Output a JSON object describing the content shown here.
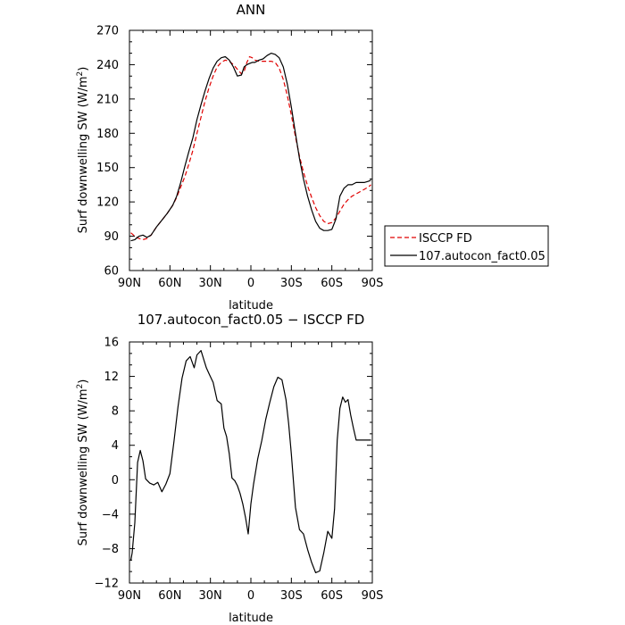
{
  "chart_data": [
    {
      "type": "line",
      "title": "ANN",
      "xlabel": "latitude",
      "ylabel": "Surf downwelling SW (W/m²)",
      "ylabel_main": "Surf downwelling SW (W/m",
      "ylabel_sup": "2",
      "ylabel_end": ")",
      "xlim": [
        90,
        -90
      ],
      "ylim": [
        60,
        270
      ],
      "x_ticks": [
        90,
        60,
        30,
        0,
        -30,
        -60,
        -90
      ],
      "x_tick_labels": [
        "90N",
        "60N",
        "30N",
        "0",
        "30S",
        "60S",
        "90S"
      ],
      "y_ticks": [
        60,
        90,
        120,
        150,
        180,
        210,
        240,
        270
      ],
      "y_tick_labels": [
        "60",
        "90",
        "120",
        "150",
        "180",
        "210",
        "240",
        "270"
      ],
      "legend": "right",
      "series": [
        {
          "name": "ISCCP FD",
          "color": "#e00000",
          "dash": "dashed",
          "x": [
            89,
            86,
            83,
            80,
            77,
            74,
            70,
            66,
            62,
            58,
            55,
            52,
            49,
            46,
            43,
            40,
            37,
            34,
            31,
            28,
            25,
            22,
            19,
            16,
            13,
            10,
            7,
            5,
            3,
            1,
            -1,
            -3,
            -6,
            -9,
            -12,
            -15,
            -18,
            -21,
            -24,
            -27,
            -30,
            -33,
            -36,
            -39,
            -42,
            -45,
            -48,
            -51,
            -54,
            -57,
            -60,
            -63,
            -66,
            -69,
            -72,
            -75,
            -78,
            -81,
            -84,
            -87,
            -89
          ],
          "y": [
            93,
            90,
            88,
            87,
            88,
            91,
            98,
            104,
            110,
            117,
            124,
            133,
            142,
            153,
            165,
            180,
            194,
            208,
            220,
            230,
            238,
            242,
            244,
            243,
            240,
            236,
            232,
            234,
            242,
            247,
            246,
            244,
            243,
            243,
            243,
            243,
            242,
            237,
            227,
            213,
            196,
            177,
            160,
            146,
            134,
            124,
            115,
            108,
            103,
            101,
            102,
            106,
            112,
            118,
            122,
            125,
            127,
            129,
            131,
            133,
            135
          ]
        },
        {
          "name": "107.autocon_fact0.05",
          "color": "#000000",
          "dash": "solid",
          "x": [
            89,
            86,
            83,
            80,
            77,
            74,
            70,
            66,
            62,
            58,
            55,
            52,
            49,
            46,
            43,
            40,
            37,
            34,
            31,
            28,
            25,
            22,
            19,
            16,
            13,
            10,
            7,
            5,
            3,
            1,
            -1,
            -3,
            -6,
            -9,
            -12,
            -15,
            -18,
            -21,
            -24,
            -27,
            -30,
            -33,
            -36,
            -39,
            -42,
            -45,
            -48,
            -51,
            -54,
            -57,
            -60,
            -63,
            -66,
            -69,
            -72,
            -75,
            -78,
            -81,
            -84,
            -87,
            -89
          ],
          "y": [
            86,
            87,
            90,
            91,
            89,
            91,
            98,
            104,
            110,
            117,
            125,
            137,
            151,
            164,
            176,
            192,
            205,
            217,
            228,
            237,
            243,
            246,
            247,
            244,
            238,
            230,
            231,
            238,
            240,
            241,
            242,
            242,
            244,
            245,
            248,
            250,
            249,
            246,
            238,
            223,
            203,
            180,
            158,
            140,
            125,
            113,
            103,
            97,
            95,
            95,
            96,
            105,
            125,
            132,
            135,
            135,
            137,
            137,
            137,
            138,
            139
          ]
        }
      ]
    },
    {
      "type": "line",
      "title": "107.autocon_fact0.05 − ISCCP FD",
      "xlabel": "latitude",
      "ylabel": "Surf downwelling SW (W/m²)",
      "ylabel_main": "Surf downwelling SW (W/m",
      "ylabel_sup": "2",
      "ylabel_end": ")",
      "xlim": [
        90,
        -90
      ],
      "ylim": [
        -12,
        16
      ],
      "x_ticks": [
        90,
        60,
        30,
        0,
        -30,
        -60,
        -90
      ],
      "x_tick_labels": [
        "90N",
        "60N",
        "30N",
        "0",
        "30S",
        "60S",
        "90S"
      ],
      "y_ticks": [
        -12,
        -8,
        -4,
        0,
        4,
        8,
        12,
        16
      ],
      "y_tick_labels": [
        "−12",
        "−8",
        "−4",
        "0",
        "4",
        "8",
        "12",
        "16"
      ],
      "series": [
        {
          "color": "#000000",
          "dash": "solid",
          "x": [
            89,
            88,
            86,
            84,
            82,
            80,
            78,
            75,
            72,
            69,
            66,
            63,
            60,
            57,
            54,
            51,
            48,
            45,
            42,
            40,
            37,
            35,
            33,
            31,
            28,
            25,
            22,
            20,
            18,
            16,
            14,
            12,
            10,
            8,
            6,
            4,
            2,
            0,
            -2,
            -5,
            -8,
            -11,
            -14,
            -17,
            -20,
            -23,
            -26,
            -28,
            -30,
            -33,
            -36,
            -39,
            -42,
            -45,
            -48,
            -51,
            -54,
            -57,
            -60,
            -62,
            -64,
            -66,
            -68,
            -70,
            -72,
            -74,
            -76,
            -78,
            -80,
            -83,
            -86,
            -89
          ],
          "y": [
            -9.4,
            -8.5,
            -5,
            2,
            3.4,
            2.2,
            0.1,
            -0.4,
            -0.6,
            -0.3,
            -1.4,
            -0.5,
            0.7,
            4.5,
            8.5,
            11.8,
            13.8,
            14.3,
            13,
            14.5,
            15,
            14,
            13,
            12.3,
            11.3,
            9.2,
            8.8,
            6,
            5,
            3,
            0.2,
            -0.1,
            -0.7,
            -1.6,
            -2.8,
            -4.4,
            -6.3,
            -2.8,
            -0.5,
            2.4,
            4.5,
            7,
            9,
            10.8,
            11.9,
            11.6,
            9.3,
            6.5,
            3,
            -3.2,
            -5.8,
            -6.3,
            -8.1,
            -9.6,
            -10.8,
            -10.6,
            -8.5,
            -6,
            -6.8,
            -3.4,
            4.6,
            8.3,
            9.6,
            9,
            9.3,
            7.5,
            6,
            4.6,
            4.6,
            4.6,
            4.6,
            4.6
          ]
        }
      ]
    }
  ]
}
